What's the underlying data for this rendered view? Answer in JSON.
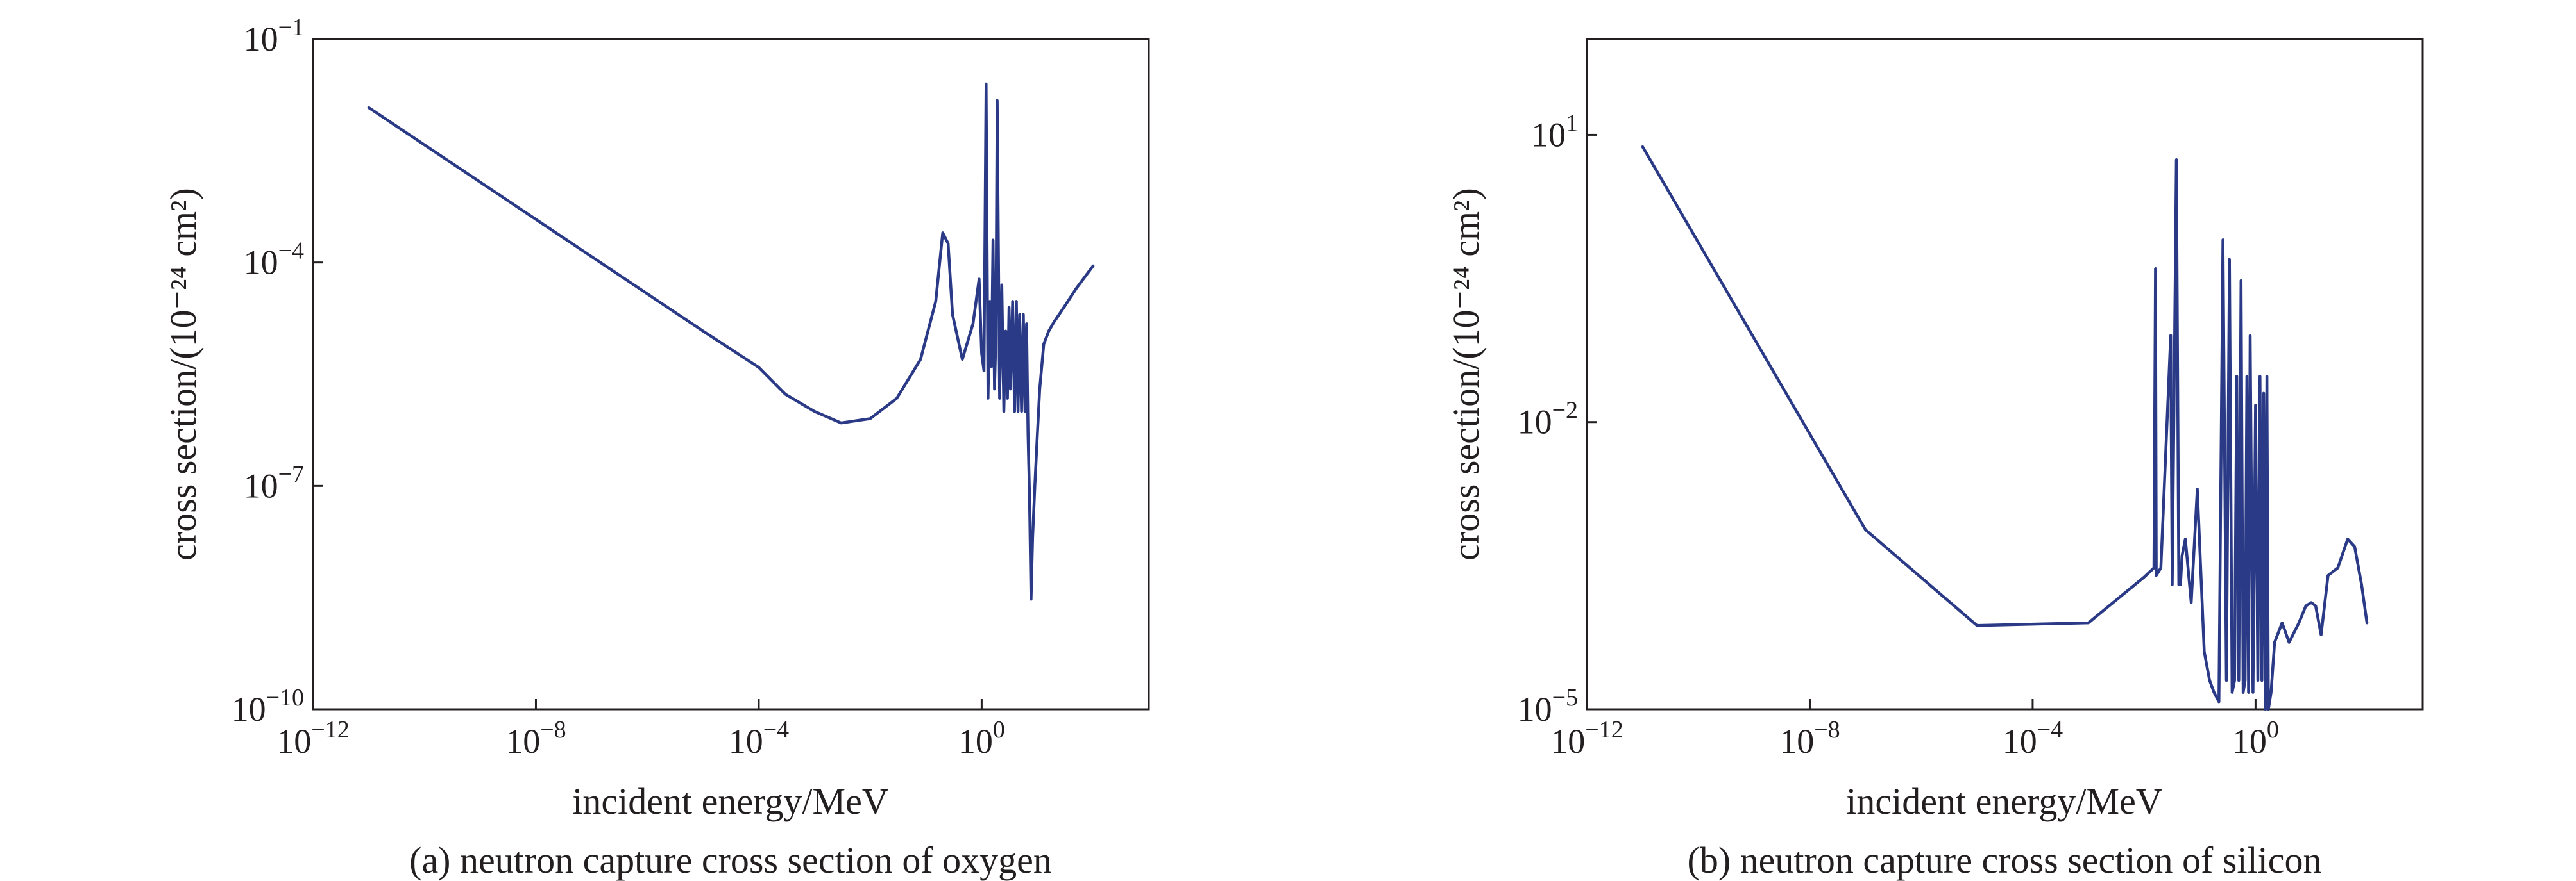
{
  "chart_data": [
    {
      "type": "line",
      "caption": "(a) neutron capture cross section of oxygen",
      "xlabel": "incident energy/MeV",
      "ylabel": "cross section/(10⁻²⁴ cm²)",
      "xscale": "log",
      "yscale": "log",
      "xlim": [
        1e-12,
        1000.0
      ],
      "ylim": [
        1e-10,
        0.1
      ],
      "xticks": [
        {
          "value": 1e-12,
          "base": "10",
          "exp": "−12"
        },
        {
          "value": 1e-08,
          "base": "10",
          "exp": "−8"
        },
        {
          "value": 0.0001,
          "base": "10",
          "exp": "−4"
        },
        {
          "value": 1,
          "base": "10",
          "exp": "0"
        }
      ],
      "yticks": [
        {
          "value": 1e-10,
          "base": "10",
          "exp": "−10"
        },
        {
          "value": 1e-07,
          "base": "10",
          "exp": "−7"
        },
        {
          "value": 0.0001,
          "base": "10",
          "exp": "−4"
        },
        {
          "value": 0.1,
          "base": "10",
          "exp": "−1"
        }
      ],
      "grid": false,
      "line_color": "#2b3a86",
      "series": [
        {
          "x": [
            1e-11,
            1e-09,
            1e-07,
            1e-05,
            0.0001,
            0.0003,
            0.001,
            0.003,
            0.01,
            0.03,
            0.08,
            0.15,
            0.2,
            0.25,
            0.3,
            0.45,
            0.7,
            0.9,
            1.0,
            1.1,
            1.2,
            1.3,
            1.4,
            1.5,
            1.6,
            1.7,
            1.8,
            1.9,
            2.1,
            2.3,
            2.5,
            2.7,
            2.9,
            3.1,
            3.3,
            3.6,
            3.9,
            4.2,
            4.5,
            4.8,
            5.2,
            5.6,
            6.0,
            6.4,
            6.8,
            7.2,
            7.7,
            8.2,
            9.0,
            10,
            11,
            13,
            16,
            20,
            30,
            50,
            100
          ],
          "y": [
            0.012,
            0.0012,
            0.00012,
            1.2e-05,
            3.9e-06,
            1.7e-06,
            1e-06,
            7e-07,
            8e-07,
            1.5e-06,
            5e-06,
            3e-05,
            0.00025,
            0.00018,
            2e-05,
            5e-06,
            1.5e-05,
            6e-05,
            6e-06,
            3.5e-06,
            0.025,
            1.5e-06,
            3e-05,
            4e-06,
            0.0002,
            2e-06,
            1e-05,
            0.015,
            1.5e-06,
            5e-05,
            1e-06,
            1.2e-05,
            1.5e-06,
            2.5e-05,
            2e-06,
            3e-05,
            1e-06,
            3e-05,
            1e-06,
            2e-05,
            1e-06,
            2e-05,
            1e-06,
            1.5e-05,
            5e-07,
            8e-08,
            3e-09,
            2e-08,
            1e-07,
            5e-07,
            2e-06,
            8e-06,
            1.2e-05,
            1.6e-05,
            2.5e-05,
            4.5e-05,
            9e-05
          ]
        }
      ]
    },
    {
      "type": "line",
      "caption": "(b) neutron capture cross section of silicon",
      "xlabel": "incident energy/MeV",
      "ylabel": "cross section/(10⁻²⁴ cm²)",
      "xscale": "log",
      "yscale": "log",
      "xlim": [
        1e-12,
        1000.0
      ],
      "ylim": [
        1e-05,
        100.0
      ],
      "xticks": [
        {
          "value": 1e-12,
          "base": "10",
          "exp": "−12"
        },
        {
          "value": 1e-08,
          "base": "10",
          "exp": "−8"
        },
        {
          "value": 0.0001,
          "base": "10",
          "exp": "−4"
        },
        {
          "value": 1,
          "base": "10",
          "exp": "0"
        }
      ],
      "yticks": [
        {
          "value": 1e-05,
          "base": "10",
          "exp": "−5"
        },
        {
          "value": 0.01,
          "base": "10",
          "exp": "−2"
        },
        {
          "value": 10,
          "base": "10",
          "exp": "1"
        }
      ],
      "grid": false,
      "line_color": "#2b3a86",
      "series": [
        {
          "x": [
            1e-11,
            1e-09,
            1e-07,
            1e-05,
            0.001,
            0.01,
            0.015,
            0.016,
            0.0165,
            0.02,
            0.03,
            0.032,
            0.038,
            0.042,
            0.045,
            0.048,
            0.055,
            0.07,
            0.09,
            0.12,
            0.15,
            0.18,
            0.22,
            0.26,
            0.3,
            0.34,
            0.38,
            0.42,
            0.46,
            0.5,
            0.55,
            0.6,
            0.65,
            0.7,
            0.75,
            0.8,
            0.9,
            1.0,
            1.1,
            1.2,
            1.3,
            1.4,
            1.5,
            1.6,
            1.7,
            1.9,
            2.2,
            3,
            4,
            6,
            8,
            10,
            12,
            15,
            20,
            30,
            45,
            60,
            80,
            100
          ],
          "y": [
            7.5,
            0.075,
            0.00075,
            7.5e-05,
            8e-05,
            0.00024,
            0.0003,
            0.4,
            0.00025,
            0.0003,
            0.08,
            0.0002,
            5.5,
            0.0002,
            0.0002,
            0.0004,
            0.0006,
            0.00013,
            0.002,
            4e-05,
            2e-05,
            1.5e-05,
            1.2e-05,
            0.8,
            2e-05,
            0.5,
            1.5e-05,
            2e-05,
            0.03,
            2e-05,
            0.3,
            1.5e-05,
            2e-05,
            0.03,
            1.5e-05,
            0.08,
            1.5e-05,
            0.015,
            2e-05,
            0.03,
            2e-05,
            0.02,
            1e-05,
            0.03,
            1e-05,
            1.5e-05,
            5e-05,
            8e-05,
            5e-05,
            8e-05,
            0.00012,
            0.00013,
            0.00012,
            6e-05,
            0.00025,
            0.0003,
            0.0006,
            0.0005,
            0.0002,
            8e-05
          ]
        }
      ]
    }
  ]
}
